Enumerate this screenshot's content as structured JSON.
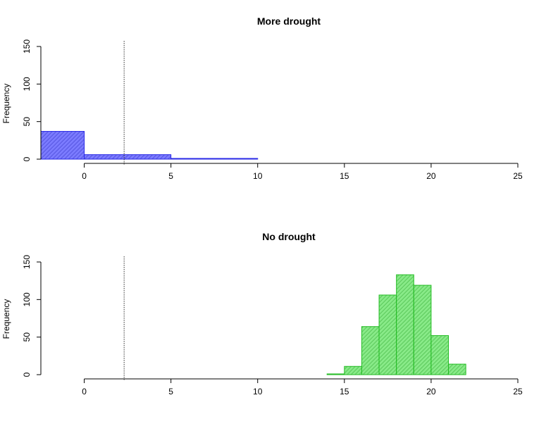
{
  "chart_data": [
    {
      "type": "bar",
      "title": "More drought",
      "xlabel": "",
      "ylabel": "Frequency",
      "bins": [
        {
          "x0": -2.5,
          "x1": 0,
          "count": 37
        },
        {
          "x0": 0,
          "x1": 5,
          "count": 6
        },
        {
          "x0": 5,
          "x1": 10,
          "count": 1
        }
      ],
      "reference_line_x": 2.3,
      "xlim": [
        -2.5,
        25
      ],
      "ylim": [
        0,
        150
      ],
      "xticks": [
        "0",
        "5",
        "10",
        "15",
        "20",
        "25"
      ],
      "yticks": [
        "0",
        "50",
        "100",
        "150"
      ],
      "bar_fill": "#7b7bff",
      "bar_hatch": "#4b4bd8",
      "bar_border": "#2a2ae6"
    },
    {
      "type": "bar",
      "title": "No drought",
      "xlabel": "",
      "ylabel": "Frequency",
      "bins": [
        {
          "x0": 14,
          "x1": 15,
          "count": 1
        },
        {
          "x0": 15,
          "x1": 16,
          "count": 11
        },
        {
          "x0": 16,
          "x1": 17,
          "count": 64
        },
        {
          "x0": 17,
          "x1": 18,
          "count": 106
        },
        {
          "x0": 18,
          "x1": 19,
          "count": 133
        },
        {
          "x0": 19,
          "x1": 20,
          "count": 119
        },
        {
          "x0": 20,
          "x1": 21,
          "count": 52
        },
        {
          "x0": 21,
          "x1": 22,
          "count": 14
        }
      ],
      "reference_line_x": 2.3,
      "xlim": [
        -2.5,
        25
      ],
      "ylim": [
        0,
        150
      ],
      "xticks": [
        "0",
        "5",
        "10",
        "15",
        "20",
        "25"
      ],
      "yticks": [
        "0",
        "50",
        "100",
        "150"
      ],
      "bar_fill": "#88ea88",
      "bar_hatch": "#4fbf4f",
      "bar_border": "#22bb22"
    }
  ]
}
